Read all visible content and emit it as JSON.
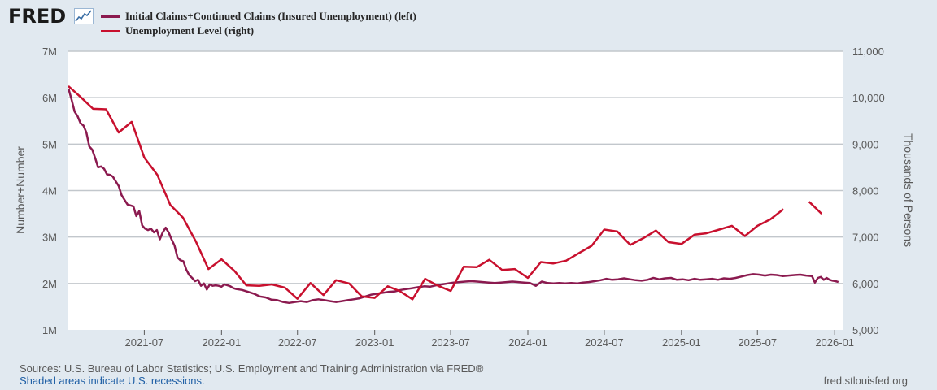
{
  "header": {
    "logo_text": "FRED",
    "logo_icon": "line-graph-icon"
  },
  "legend": [
    {
      "label": "Initial Claims+Continued Claims (Insured Unemployment) (left)",
      "color": "#8b1a4f"
    },
    {
      "label": "Unemployment Level (right)",
      "color": "#c8102e"
    }
  ],
  "footer": {
    "sources": "Sources: U.S. Bureau of Labor Statistics; U.S. Employment and Training Administration via FRED®",
    "recession_note": "Shaded areas indicate U.S. recessions.",
    "site": "fred.stlouisfed.org"
  },
  "colors": {
    "background": "#e1e9f0",
    "plot_background": "#ffffff",
    "grid": "#c2c7cc",
    "series_left": "#8b1a4f",
    "series_right": "#c8102e"
  },
  "chart_data": {
    "type": "line",
    "grid": true,
    "legend_position": "top-left",
    "x_range": [
      "2021-01-01",
      "2026-01-20"
    ],
    "x_tick_labels": [
      "2021-07",
      "2022-01",
      "2022-07",
      "2023-01",
      "2023-07",
      "2024-01",
      "2024-07",
      "2025-01",
      "2025-07",
      "2026-01"
    ],
    "y_left": {
      "label": "Number+Number",
      "range": [
        1000000,
        7000000
      ],
      "tick_labels": [
        "1M",
        "2M",
        "3M",
        "4M",
        "5M",
        "6M",
        "7M"
      ]
    },
    "y_right": {
      "label": "Thousands of Persons",
      "range": [
        5000,
        11000
      ],
      "tick_labels": [
        "5,000",
        "6,000",
        "7,000",
        "8,000",
        "9,000",
        "10,000",
        "11,000"
      ]
    },
    "series": [
      {
        "name": "Initial Claims+Continued Claims (Insured Unemployment) (left)",
        "axis": "left",
        "points": [
          [
            "2021-01-02",
            6180000
          ],
          [
            "2021-01-09",
            5950000
          ],
          [
            "2021-01-16",
            5700000
          ],
          [
            "2021-01-23",
            5600000
          ],
          [
            "2021-01-30",
            5450000
          ],
          [
            "2021-02-06",
            5400000
          ],
          [
            "2021-02-13",
            5250000
          ],
          [
            "2021-02-20",
            4950000
          ],
          [
            "2021-02-27",
            4880000
          ],
          [
            "2021-03-06",
            4700000
          ],
          [
            "2021-03-13",
            4500000
          ],
          [
            "2021-03-20",
            4520000
          ],
          [
            "2021-03-27",
            4470000
          ],
          [
            "2021-04-03",
            4350000
          ],
          [
            "2021-04-10",
            4340000
          ],
          [
            "2021-04-17",
            4300000
          ],
          [
            "2021-04-24",
            4200000
          ],
          [
            "2021-05-01",
            4100000
          ],
          [
            "2021-05-08",
            3900000
          ],
          [
            "2021-05-15",
            3800000
          ],
          [
            "2021-05-22",
            3700000
          ],
          [
            "2021-05-29",
            3680000
          ],
          [
            "2021-06-05",
            3660000
          ],
          [
            "2021-06-12",
            3450000
          ],
          [
            "2021-06-19",
            3560000
          ],
          [
            "2021-06-26",
            3250000
          ],
          [
            "2021-07-03",
            3180000
          ],
          [
            "2021-07-10",
            3150000
          ],
          [
            "2021-07-17",
            3180000
          ],
          [
            "2021-07-24",
            3100000
          ],
          [
            "2021-07-31",
            3150000
          ],
          [
            "2021-08-07",
            2950000
          ],
          [
            "2021-08-14",
            3100000
          ],
          [
            "2021-08-21",
            3200000
          ],
          [
            "2021-08-28",
            3100000
          ],
          [
            "2021-09-04",
            2950000
          ],
          [
            "2021-09-11",
            2820000
          ],
          [
            "2021-09-18",
            2560000
          ],
          [
            "2021-09-25",
            2500000
          ],
          [
            "2021-10-02",
            2480000
          ],
          [
            "2021-10-09",
            2300000
          ],
          [
            "2021-10-16",
            2180000
          ],
          [
            "2021-10-23",
            2120000
          ],
          [
            "2021-10-30",
            2050000
          ],
          [
            "2021-11-06",
            2080000
          ],
          [
            "2021-11-13",
            1950000
          ],
          [
            "2021-11-20",
            2000000
          ],
          [
            "2021-11-27",
            1870000
          ],
          [
            "2021-12-04",
            1980000
          ],
          [
            "2021-12-11",
            1950000
          ],
          [
            "2021-12-18",
            1960000
          ],
          [
            "2021-12-25",
            1950000
          ],
          [
            "2022-01-01",
            1930000
          ],
          [
            "2022-01-08",
            1980000
          ],
          [
            "2022-01-15",
            1960000
          ],
          [
            "2022-01-22",
            1940000
          ],
          [
            "2022-01-29",
            1900000
          ],
          [
            "2022-02-05",
            1880000
          ],
          [
            "2022-02-19",
            1860000
          ],
          [
            "2022-03-05",
            1820000
          ],
          [
            "2022-03-19",
            1780000
          ],
          [
            "2022-04-02",
            1720000
          ],
          [
            "2022-04-16",
            1700000
          ],
          [
            "2022-04-30",
            1650000
          ],
          [
            "2022-05-14",
            1640000
          ],
          [
            "2022-05-28",
            1600000
          ],
          [
            "2022-06-11",
            1580000
          ],
          [
            "2022-06-25",
            1600000
          ],
          [
            "2022-07-09",
            1620000
          ],
          [
            "2022-07-23",
            1600000
          ],
          [
            "2022-08-06",
            1640000
          ],
          [
            "2022-08-20",
            1660000
          ],
          [
            "2022-09-03",
            1640000
          ],
          [
            "2022-09-17",
            1620000
          ],
          [
            "2022-10-01",
            1600000
          ],
          [
            "2022-10-15",
            1620000
          ],
          [
            "2022-10-29",
            1640000
          ],
          [
            "2022-11-12",
            1660000
          ],
          [
            "2022-11-26",
            1680000
          ],
          [
            "2022-12-10",
            1720000
          ],
          [
            "2022-12-24",
            1760000
          ],
          [
            "2023-01-07",
            1780000
          ],
          [
            "2023-01-21",
            1800000
          ],
          [
            "2023-02-04",
            1820000
          ],
          [
            "2023-02-18",
            1830000
          ],
          [
            "2023-03-04",
            1860000
          ],
          [
            "2023-03-18",
            1880000
          ],
          [
            "2023-04-01",
            1900000
          ],
          [
            "2023-04-15",
            1920000
          ],
          [
            "2023-04-29",
            1940000
          ],
          [
            "2023-05-13",
            1930000
          ],
          [
            "2023-05-27",
            1960000
          ],
          [
            "2023-06-10",
            1980000
          ],
          [
            "2023-06-24",
            2000000
          ],
          [
            "2023-07-08",
            2020000
          ],
          [
            "2023-07-22",
            2030000
          ],
          [
            "2023-08-05",
            2040000
          ],
          [
            "2023-08-19",
            2050000
          ],
          [
            "2023-09-02",
            2040000
          ],
          [
            "2023-09-16",
            2030000
          ],
          [
            "2023-09-30",
            2020000
          ],
          [
            "2023-10-14",
            2010000
          ],
          [
            "2023-10-28",
            2020000
          ],
          [
            "2023-11-11",
            2030000
          ],
          [
            "2023-11-25",
            2040000
          ],
          [
            "2023-12-09",
            2030000
          ],
          [
            "2023-12-23",
            2020000
          ],
          [
            "2024-01-06",
            2010000
          ],
          [
            "2024-01-20",
            1950000
          ],
          [
            "2024-02-03",
            2040000
          ],
          [
            "2024-02-17",
            2010000
          ],
          [
            "2024-03-02",
            2000000
          ],
          [
            "2024-03-16",
            2010000
          ],
          [
            "2024-03-30",
            2000000
          ],
          [
            "2024-04-13",
            2010000
          ],
          [
            "2024-04-27",
            2000000
          ],
          [
            "2024-05-11",
            2020000
          ],
          [
            "2024-05-25",
            2030000
          ],
          [
            "2024-06-08",
            2050000
          ],
          [
            "2024-06-22",
            2070000
          ],
          [
            "2024-07-06",
            2100000
          ],
          [
            "2024-07-20",
            2080000
          ],
          [
            "2024-08-03",
            2090000
          ],
          [
            "2024-08-17",
            2110000
          ],
          [
            "2024-08-31",
            2090000
          ],
          [
            "2024-09-14",
            2070000
          ],
          [
            "2024-09-28",
            2060000
          ],
          [
            "2024-10-12",
            2080000
          ],
          [
            "2024-10-26",
            2120000
          ],
          [
            "2024-11-09",
            2090000
          ],
          [
            "2024-11-23",
            2110000
          ],
          [
            "2024-12-07",
            2120000
          ],
          [
            "2024-12-21",
            2080000
          ],
          [
            "2025-01-04",
            2090000
          ],
          [
            "2025-01-18",
            2070000
          ],
          [
            "2025-02-01",
            2100000
          ],
          [
            "2025-02-15",
            2080000
          ],
          [
            "2025-03-01",
            2090000
          ],
          [
            "2025-03-15",
            2100000
          ],
          [
            "2025-03-29",
            2080000
          ],
          [
            "2025-04-12",
            2110000
          ],
          [
            "2025-04-26",
            2100000
          ],
          [
            "2025-05-10",
            2120000
          ],
          [
            "2025-05-24",
            2150000
          ],
          [
            "2025-06-07",
            2180000
          ],
          [
            "2025-06-21",
            2200000
          ],
          [
            "2025-07-05",
            2190000
          ],
          [
            "2025-07-19",
            2170000
          ],
          [
            "2025-08-02",
            2190000
          ],
          [
            "2025-08-16",
            2180000
          ],
          [
            "2025-08-30",
            2160000
          ],
          [
            "2025-09-13",
            2170000
          ],
          [
            "2025-09-27",
            2180000
          ],
          [
            "2025-10-11",
            2190000
          ],
          [
            "2025-10-25",
            2170000
          ],
          [
            "2025-11-08",
            2160000
          ],
          [
            "2025-11-15",
            2020000
          ],
          [
            "2025-11-22",
            2120000
          ],
          [
            "2025-11-29",
            2140000
          ],
          [
            "2025-12-06",
            2080000
          ],
          [
            "2025-12-13",
            2120000
          ],
          [
            "2025-12-20",
            2080000
          ],
          [
            "2025-12-27",
            2060000
          ],
          [
            "2026-01-03",
            2050000
          ],
          [
            "2026-01-10",
            2030000
          ]
        ]
      },
      {
        "name": "Unemployment Level (right)",
        "axis": "right",
        "segments": [
          [
            [
              "2021-01-01",
              10250
            ],
            [
              "2021-02-01",
              10000
            ],
            [
              "2021-03-01",
              9760
            ],
            [
              "2021-04-01",
              9750
            ],
            [
              "2021-05-01",
              9250
            ],
            [
              "2021-06-01",
              9480
            ],
            [
              "2021-07-01",
              8710
            ],
            [
              "2021-08-01",
              8340
            ],
            [
              "2021-09-01",
              7690
            ],
            [
              "2021-10-01",
              7420
            ],
            [
              "2021-11-01",
              6900
            ],
            [
              "2021-12-01",
              6310
            ],
            [
              "2022-01-01",
              6520
            ],
            [
              "2022-02-01",
              6270
            ],
            [
              "2022-03-01",
              5960
            ],
            [
              "2022-04-01",
              5950
            ],
            [
              "2022-05-01",
              5980
            ],
            [
              "2022-06-01",
              5910
            ],
            [
              "2022-07-01",
              5670
            ],
            [
              "2022-08-01",
              6010
            ],
            [
              "2022-09-01",
              5750
            ],
            [
              "2022-10-01",
              6070
            ],
            [
              "2022-11-01",
              6000
            ],
            [
              "2022-12-01",
              5720
            ],
            [
              "2023-01-01",
              5690
            ],
            [
              "2023-02-01",
              5940
            ],
            [
              "2023-03-01",
              5840
            ],
            [
              "2023-04-01",
              5660
            ],
            [
              "2023-05-01",
              6100
            ],
            [
              "2023-06-01",
              5950
            ],
            [
              "2023-07-01",
              5840
            ],
            [
              "2023-08-01",
              6360
            ],
            [
              "2023-09-01",
              6350
            ],
            [
              "2023-10-01",
              6510
            ],
            [
              "2023-11-01",
              6290
            ],
            [
              "2023-12-01",
              6310
            ],
            [
              "2024-01-01",
              6120
            ],
            [
              "2024-02-01",
              6460
            ],
            [
              "2024-03-01",
              6430
            ],
            [
              "2024-04-01",
              6490
            ],
            [
              "2024-05-01",
              6650
            ],
            [
              "2024-06-01",
              6810
            ],
            [
              "2024-07-01",
              7160
            ],
            [
              "2024-08-01",
              7120
            ],
            [
              "2024-09-01",
              6830
            ],
            [
              "2024-10-01",
              6970
            ],
            [
              "2024-11-01",
              7140
            ],
            [
              "2024-12-01",
              6890
            ],
            [
              "2025-01-01",
              6850
            ],
            [
              "2025-02-01",
              7050
            ],
            [
              "2025-03-01",
              7080
            ],
            [
              "2025-04-01",
              7160
            ],
            [
              "2025-05-01",
              7240
            ],
            [
              "2025-06-01",
              7020
            ],
            [
              "2025-07-01",
              7240
            ],
            [
              "2025-08-01",
              7380
            ],
            [
              "2025-09-01",
              7600
            ]
          ],
          [
            [
              "2025-11-01",
              7760
            ],
            [
              "2025-12-01",
              7500
            ]
          ]
        ]
      }
    ]
  }
}
